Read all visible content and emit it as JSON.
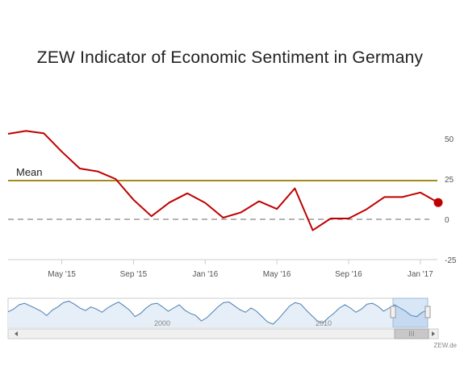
{
  "chart_data": {
    "type": "line",
    "title": "ZEW Indicator of Economic Sentiment in Germany",
    "series": [
      {
        "values": [
          {
            "x": "2015-02",
            "y": 53.0
          },
          {
            "x": "2015-03",
            "y": 54.8
          },
          {
            "x": "2015-04",
            "y": 53.3
          },
          {
            "x": "2015-05",
            "y": 41.9
          },
          {
            "x": "2015-06",
            "y": 31.5
          },
          {
            "x": "2015-07",
            "y": 29.7
          },
          {
            "x": "2015-08",
            "y": 25.0
          },
          {
            "x": "2015-09",
            "y": 12.1
          },
          {
            "x": "2015-10",
            "y": 1.9
          },
          {
            "x": "2015-11",
            "y": 10.4
          },
          {
            "x": "2015-12",
            "y": 16.1
          },
          {
            "x": "2016-01",
            "y": 10.2
          },
          {
            "x": "2016-02",
            "y": 1.0
          },
          {
            "x": "2016-03",
            "y": 4.3
          },
          {
            "x": "2016-04",
            "y": 11.2
          },
          {
            "x": "2016-05",
            "y": 6.4
          },
          {
            "x": "2016-06",
            "y": 19.2
          },
          {
            "x": "2016-07",
            "y": -6.8
          },
          {
            "x": "2016-08",
            "y": 0.5
          },
          {
            "x": "2016-09",
            "y": 0.5
          },
          {
            "x": "2016-10",
            "y": 6.2
          },
          {
            "x": "2016-11",
            "y": 13.8
          },
          {
            "x": "2016-12",
            "y": 13.8
          },
          {
            "x": "2017-01",
            "y": 16.6
          },
          {
            "x": "2017-02",
            "y": 10.4
          }
        ]
      }
    ],
    "mean": {
      "label": "Mean",
      "value": 24
    },
    "x_ticks": [
      {
        "x": "2015-05",
        "label": "May '15"
      },
      {
        "x": "2015-09",
        "label": "Sep '15"
      },
      {
        "x": "2016-01",
        "label": "Jan '16"
      },
      {
        "x": "2016-05",
        "label": "May '16"
      },
      {
        "x": "2016-09",
        "label": "Sep '16"
      },
      {
        "x": "2017-01",
        "label": "Jan '17"
      }
    ],
    "y_ticks": [
      50,
      25,
      0,
      -25
    ],
    "ylim": [
      -25,
      50
    ],
    "colors": {
      "line": "#c00000",
      "mean": "#a58b1a",
      "zero": "#888888",
      "navigator": "#4a7fb0"
    },
    "navigator": {
      "labels": [
        "2000",
        "2010"
      ],
      "scrollbar_glyph": "III",
      "credit": "ZEW.de",
      "series": [
        12,
        25,
        45,
        52,
        40,
        28,
        15,
        -5,
        20,
        35,
        55,
        62,
        48,
        30,
        18,
        35,
        25,
        10,
        30,
        45,
        58,
        40,
        20,
        -10,
        5,
        30,
        48,
        52,
        35,
        15,
        30,
        45,
        20,
        5,
        -5,
        -30,
        -15,
        10,
        35,
        55,
        58,
        40,
        22,
        10,
        30,
        15,
        -10,
        -35,
        -45,
        -20,
        10,
        40,
        55,
        48,
        20,
        -5,
        -30,
        -40,
        -15,
        5,
        30,
        45,
        30,
        10,
        25,
        48,
        52,
        38,
        15,
        30,
        45,
        30,
        15,
        -5,
        -10,
        10,
        20
      ]
    }
  }
}
